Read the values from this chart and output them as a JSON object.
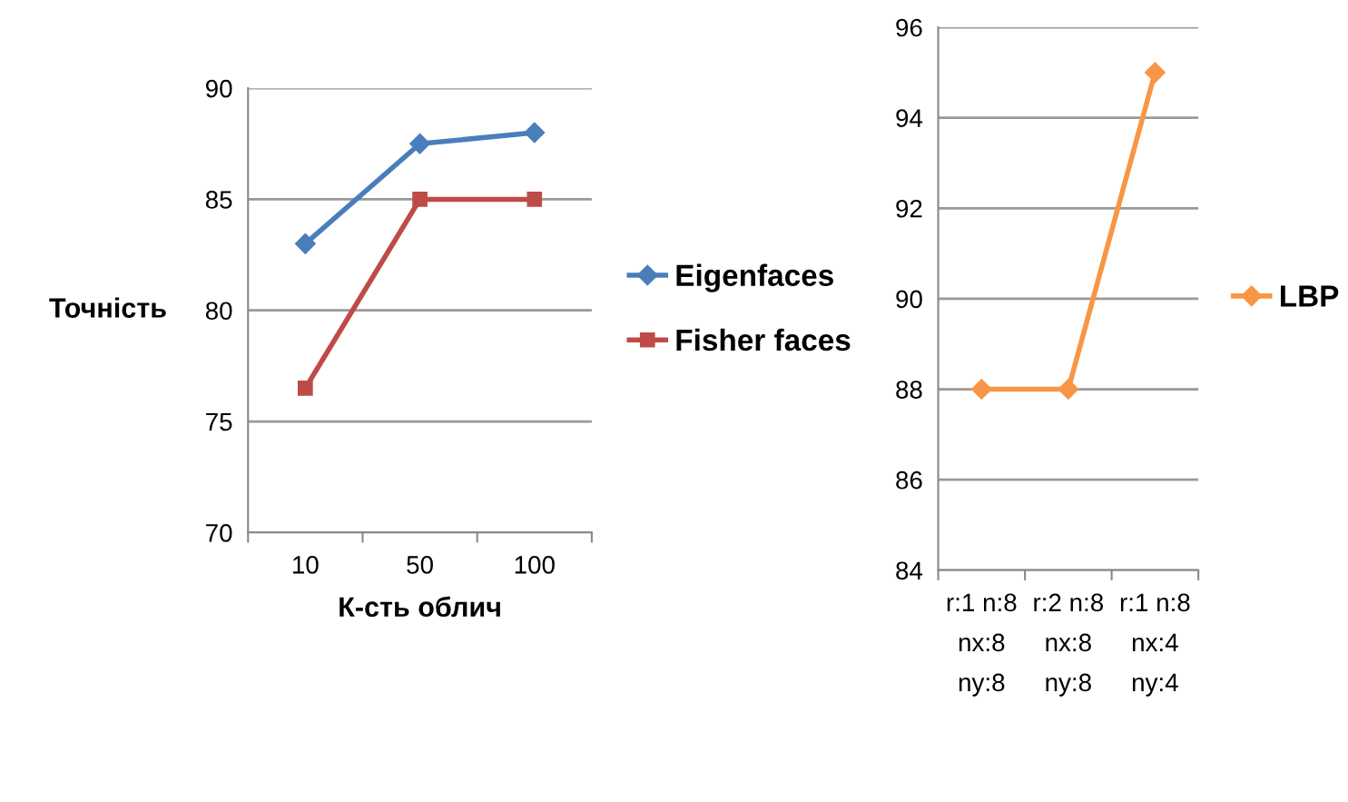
{
  "chart_data": [
    {
      "type": "line",
      "ylabel": "Точність",
      "xlabel": "К-сть облич",
      "categories": [
        "10",
        "50",
        "100"
      ],
      "ylim": [
        70,
        90
      ],
      "yticks": [
        70,
        75,
        80,
        85,
        90
      ],
      "grid": "y",
      "legend": "right",
      "series": [
        {
          "name": "Eigenfaces",
          "color": "#4a7ebb",
          "marker": "diamond",
          "values": [
            83,
            87.5,
            88
          ]
        },
        {
          "name": "Fisher faces",
          "color": "#be4b48",
          "marker": "square",
          "values": [
            76.5,
            85,
            85
          ]
        }
      ]
    },
    {
      "type": "line",
      "categories": [
        "r:1 n:8\nnx:8\nny:8",
        "r:2 n:8\nnx:8\nny:8",
        "r:1 n:8\nnx:4\nny:4"
      ],
      "ylim": [
        84,
        96
      ],
      "yticks": [
        84,
        86,
        88,
        90,
        92,
        94,
        96
      ],
      "grid": "y",
      "legend": "right",
      "series": [
        {
          "name": "LBP",
          "color": "#f79646",
          "marker": "diamond",
          "values": [
            88,
            88,
            95
          ]
        }
      ]
    }
  ]
}
